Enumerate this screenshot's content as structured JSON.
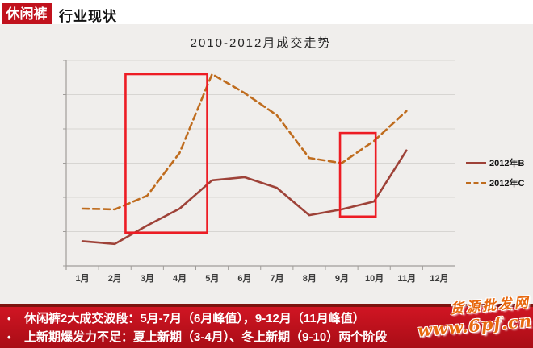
{
  "header": {
    "badge": "休闲裤",
    "title": "行业现状"
  },
  "chart_data": {
    "type": "line",
    "title": "2010-2012月成交走势",
    "categories": [
      "1月",
      "2月",
      "3月",
      "4月",
      "5月",
      "6月",
      "7月",
      "8月",
      "9月",
      "10月",
      "11月",
      "12月"
    ],
    "series": [
      {
        "name": "2012年B",
        "style": "solid",
        "color": "#9e4238",
        "values": [
          0.72,
          0.64,
          1.18,
          1.67,
          2.5,
          2.59,
          2.28,
          1.48,
          1.65,
          1.88,
          3.37,
          null
        ]
      },
      {
        "name": "2012年C",
        "style": "dashed",
        "color": "#bf6c1e",
        "values": [
          1.67,
          1.65,
          2.05,
          3.3,
          5.6,
          5.05,
          4.4,
          3.15,
          3.0,
          3.65,
          4.52,
          null
        ]
      }
    ],
    "ylim": [
      0,
      6
    ],
    "gridlines": 6,
    "grid": true,
    "y_tick_labels": [],
    "legend_position": "right",
    "annotations": [
      {
        "type": "rect",
        "color": "#ed1c24",
        "month_from": 2.33,
        "month_to": 4.85,
        "value_from": 0.97,
        "value_to": 5.6
      },
      {
        "type": "rect",
        "color": "#ed1c24",
        "month_from": 8.95,
        "month_to": 10.05,
        "value_from": 1.44,
        "value_to": 3.88
      }
    ]
  },
  "banner": {
    "bullet_char": "•",
    "bullets": [
      "休闲裤2大成交波段：5月-7月（6月峰值），9-12月（11月峰值）",
      "上新期爆发力不足：夏上新期（3-4月）、冬上新期（9-10）两个阶段"
    ]
  },
  "watermark": {
    "line1": "货源批发网",
    "line2": "www.6pf.cn"
  },
  "colors": {
    "badge_bg": "#c1121d",
    "banner_bg": "#c01020",
    "banner_top_strip": "#7c120e",
    "slide_bg": "#f0eeec",
    "gridline": "#d7d5d2",
    "axis": "#a09d9a",
    "series_b": "#9e4238",
    "series_c": "#bf6c1e",
    "annotation_red": "#ed1c24"
  }
}
